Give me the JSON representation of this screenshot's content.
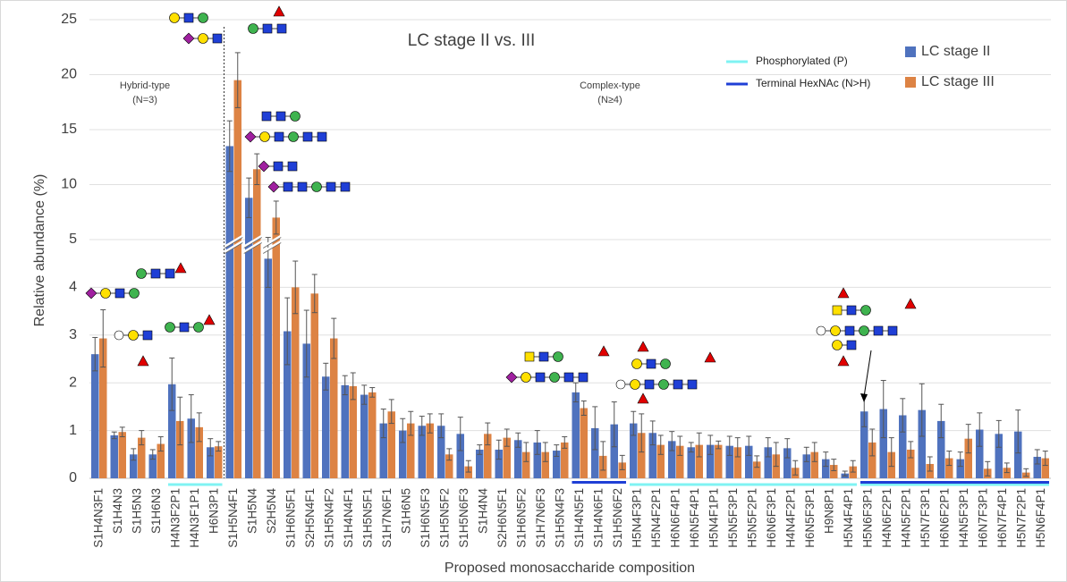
{
  "chart_data": {
    "type": "bar",
    "title": "LC stage II vs. III",
    "x_label": "Proposed monosaccharide composition",
    "y_label": "Relative abundance (%)",
    "annotations": [
      "Hybrid-type",
      "(N=3)",
      "Complex-type",
      "(N≥4)"
    ],
    "categories": [
      "S1H4N3F1",
      "S1H4N3",
      "S1H5N3",
      "S1H6N3",
      "H4N3F2P1",
      "H4N3F1P1",
      "H6N3P1",
      "S1H5N4F1",
      "S1H5N4",
      "S2H5N4",
      "S1H6N5F1",
      "S2H5N4F1",
      "S1H5N4F2",
      "S1H4N4F1",
      "S1H5N5F1",
      "S1H7N6F1",
      "S1H6N5",
      "S1H6N5F3",
      "S1H5N5F2",
      "S1H5N6F3",
      "S1H4N4",
      "S2H6N5F1",
      "S1H6N5F2",
      "S1H7N6F3",
      "S1H5N4F3",
      "S1H4N5F1",
      "S1H4N6F1",
      "S1H5N6F2",
      "H5N4F3P1",
      "H5N4F2P1",
      "H6N6F4P1",
      "H6N5F4P1",
      "H5N4F1P1",
      "H5N5F3P1",
      "H5N5F2P1",
      "H6N6F3P1",
      "H4N4F2P1",
      "H6N5F3P1",
      "H9N8P1",
      "H5N4F4P1",
      "H5N6F3P1",
      "H4N6F2P1",
      "H4N5F2P1",
      "H5N7F3P1",
      "H6N6F2P1",
      "H4N5F3P1",
      "H6N7F3P1",
      "H6N7F4P1",
      "H5N7F2P1",
      "H5N6F4P1"
    ],
    "series": [
      {
        "name": "LC stage II",
        "color": "#4f72be",
        "values": [
          2.6,
          0.9,
          0.5,
          0.5,
          1.97,
          1.25,
          0.65,
          13.5,
          8.8,
          4.6,
          3.08,
          2.82,
          2.13,
          1.95,
          1.75,
          1.15,
          1.0,
          1.1,
          1.1,
          0.93,
          0.6,
          0.6,
          0.8,
          0.75,
          0.58,
          1.8,
          1.05,
          1.13,
          1.15,
          0.95,
          0.78,
          0.65,
          0.7,
          0.68,
          0.68,
          0.65,
          0.63,
          0.5,
          0.4,
          0.1,
          1.4,
          1.45,
          1.32,
          1.43,
          1.2,
          0.4,
          1.02,
          0.93,
          0.98,
          0.45
        ],
        "errors": [
          0.35,
          0.07,
          0.12,
          0.1,
          0.55,
          0.5,
          0.18,
          2.3,
          1.8,
          0.6,
          0.7,
          0.7,
          0.28,
          0.2,
          0.2,
          0.3,
          0.25,
          0.2,
          0.25,
          0.35,
          0.1,
          0.2,
          0.15,
          0.25,
          0.12,
          0.2,
          0.45,
          0.47,
          0.25,
          0.25,
          0.2,
          0.1,
          0.2,
          0.2,
          0.2,
          0.2,
          0.2,
          0.15,
          0.15,
          0.05,
          0.32,
          0.6,
          0.35,
          0.55,
          0.35,
          0.15,
          0.35,
          0.28,
          0.45,
          0.15
        ]
      },
      {
        "name": "LC stage III",
        "color": "#dd8344",
        "values": [
          2.93,
          0.97,
          0.85,
          0.72,
          1.2,
          1.07,
          0.67,
          19.5,
          11.4,
          7.0,
          4.0,
          3.87,
          2.93,
          1.93,
          1.8,
          1.4,
          1.15,
          1.15,
          0.5,
          0.25,
          0.93,
          0.85,
          0.55,
          0.55,
          0.75,
          1.47,
          0.47,
          0.33,
          0.95,
          0.7,
          0.68,
          0.7,
          0.7,
          0.65,
          0.35,
          0.5,
          0.22,
          0.55,
          0.28,
          0.25,
          0.75,
          0.55,
          0.6,
          0.3,
          0.42,
          0.83,
          0.2,
          0.22,
          0.12,
          0.42
        ],
        "errors": [
          0.6,
          0.1,
          0.15,
          0.15,
          0.5,
          0.3,
          0.1,
          2.5,
          1.4,
          1.5,
          0.55,
          0.4,
          0.42,
          0.28,
          0.1,
          0.25,
          0.25,
          0.2,
          0.12,
          0.12,
          0.23,
          0.18,
          0.2,
          0.2,
          0.12,
          0.15,
          0.3,
          0.15,
          0.4,
          0.2,
          0.2,
          0.25,
          0.08,
          0.2,
          0.12,
          0.25,
          0.15,
          0.2,
          0.12,
          0.12,
          0.28,
          0.3,
          0.17,
          0.15,
          0.15,
          0.3,
          0.15,
          0.1,
          0.08,
          0.15
        ]
      }
    ],
    "markers": [
      {
        "name": "Phosphorylated (P)",
        "color": "#7ff3f3",
        "ranges": [
          [
            "H4N3F2P1",
            "H6N3P1"
          ],
          [
            "H5N4F3P1",
            "H5N4F4P1"
          ],
          [
            "H5N6F3P1",
            "H5N6F4P1"
          ]
        ]
      },
      {
        "name": "Terminal HexNAc (N>H)",
        "color": "#1f3fd6",
        "ranges": [
          [
            "S1H4N5F1",
            "S1H5N6F2"
          ],
          [
            "H5N6F3P1",
            "H5N6F4P1"
          ]
        ]
      }
    ],
    "ylim": [
      0,
      25
    ],
    "yticks": [
      0,
      1,
      2,
      3,
      4,
      5,
      10,
      15,
      20,
      25
    ],
    "axis_break": 5,
    "grid": true
  }
}
